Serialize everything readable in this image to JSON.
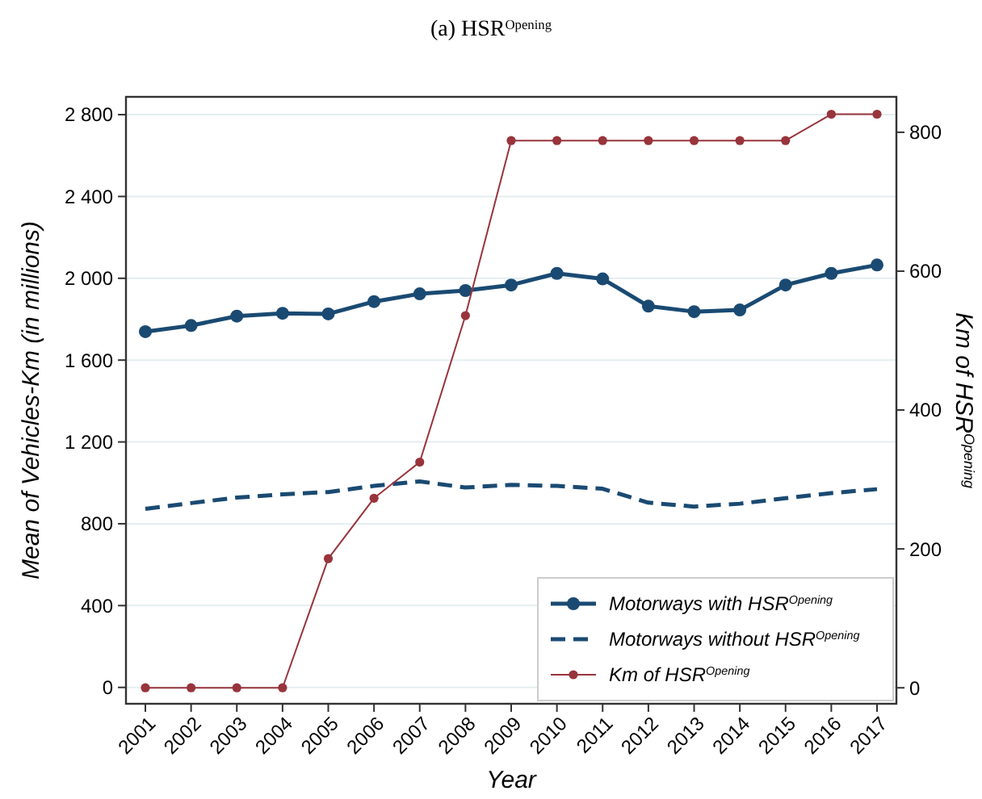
{
  "chart_data": {
    "type": "line",
    "title": "(a) HSR$^{Opening}$",
    "xlabel": "Year",
    "ylabel": "Mean of Vehicles-Km (in millions)",
    "y2label": "Km of HSR$^{Opening}$",
    "categories": [
      "2001",
      "2002",
      "2003",
      "2004",
      "2005",
      "2006",
      "2007",
      "2008",
      "2009",
      "2010",
      "2011",
      "2012",
      "2013",
      "2014",
      "2015",
      "2016",
      "2017"
    ],
    "series": [
      {
        "name": "Motorways with HSR$^{Opening}$",
        "color": "#1a4a72",
        "marker": "circle",
        "line_style": "solid",
        "values": [
          1739,
          1769,
          1815,
          1829,
          1826,
          1886,
          1924,
          1940,
          1967,
          2024,
          1997,
          1864,
          1837,
          1845,
          1967,
          2024,
          2065
        ]
      },
      {
        "name": "Motorways without HSR$^{Opening}$",
        "color": "#1a4a72",
        "marker": "none",
        "line_style": "dashed",
        "values": [
          873,
          901,
          928,
          944,
          955,
          985,
          1007,
          977,
          990,
          985,
          971,
          903,
          884,
          898,
          925,
          950,
          969
        ]
      },
      {
        "name": "Km of HSR$^{Opening}$",
        "color": "#98343c",
        "marker": "circle",
        "line_style": "solid",
        "axis": "y2",
        "values": [
          0,
          0,
          0,
          0,
          186,
          273,
          325,
          536,
          788,
          788,
          788,
          788,
          788,
          788,
          788,
          826,
          826
        ]
      }
    ],
    "ylim": [
      -80,
      2887
    ],
    "yticks": [
      0,
      400,
      800,
      {
        "value": 1200,
        "label": "1 200"
      },
      {
        "value": 1600,
        "label": "1 600"
      },
      {
        "value": 2000,
        "label": "2 000"
      },
      {
        "value": 2400,
        "label": "2 400"
      },
      {
        "value": 2800,
        "label": "2 800"
      }
    ],
    "y2lim": [
      -23,
      851
    ],
    "y2ticks": [
      0,
      200,
      400,
      600,
      800
    ],
    "grid": "y",
    "legend": "bottom right"
  }
}
